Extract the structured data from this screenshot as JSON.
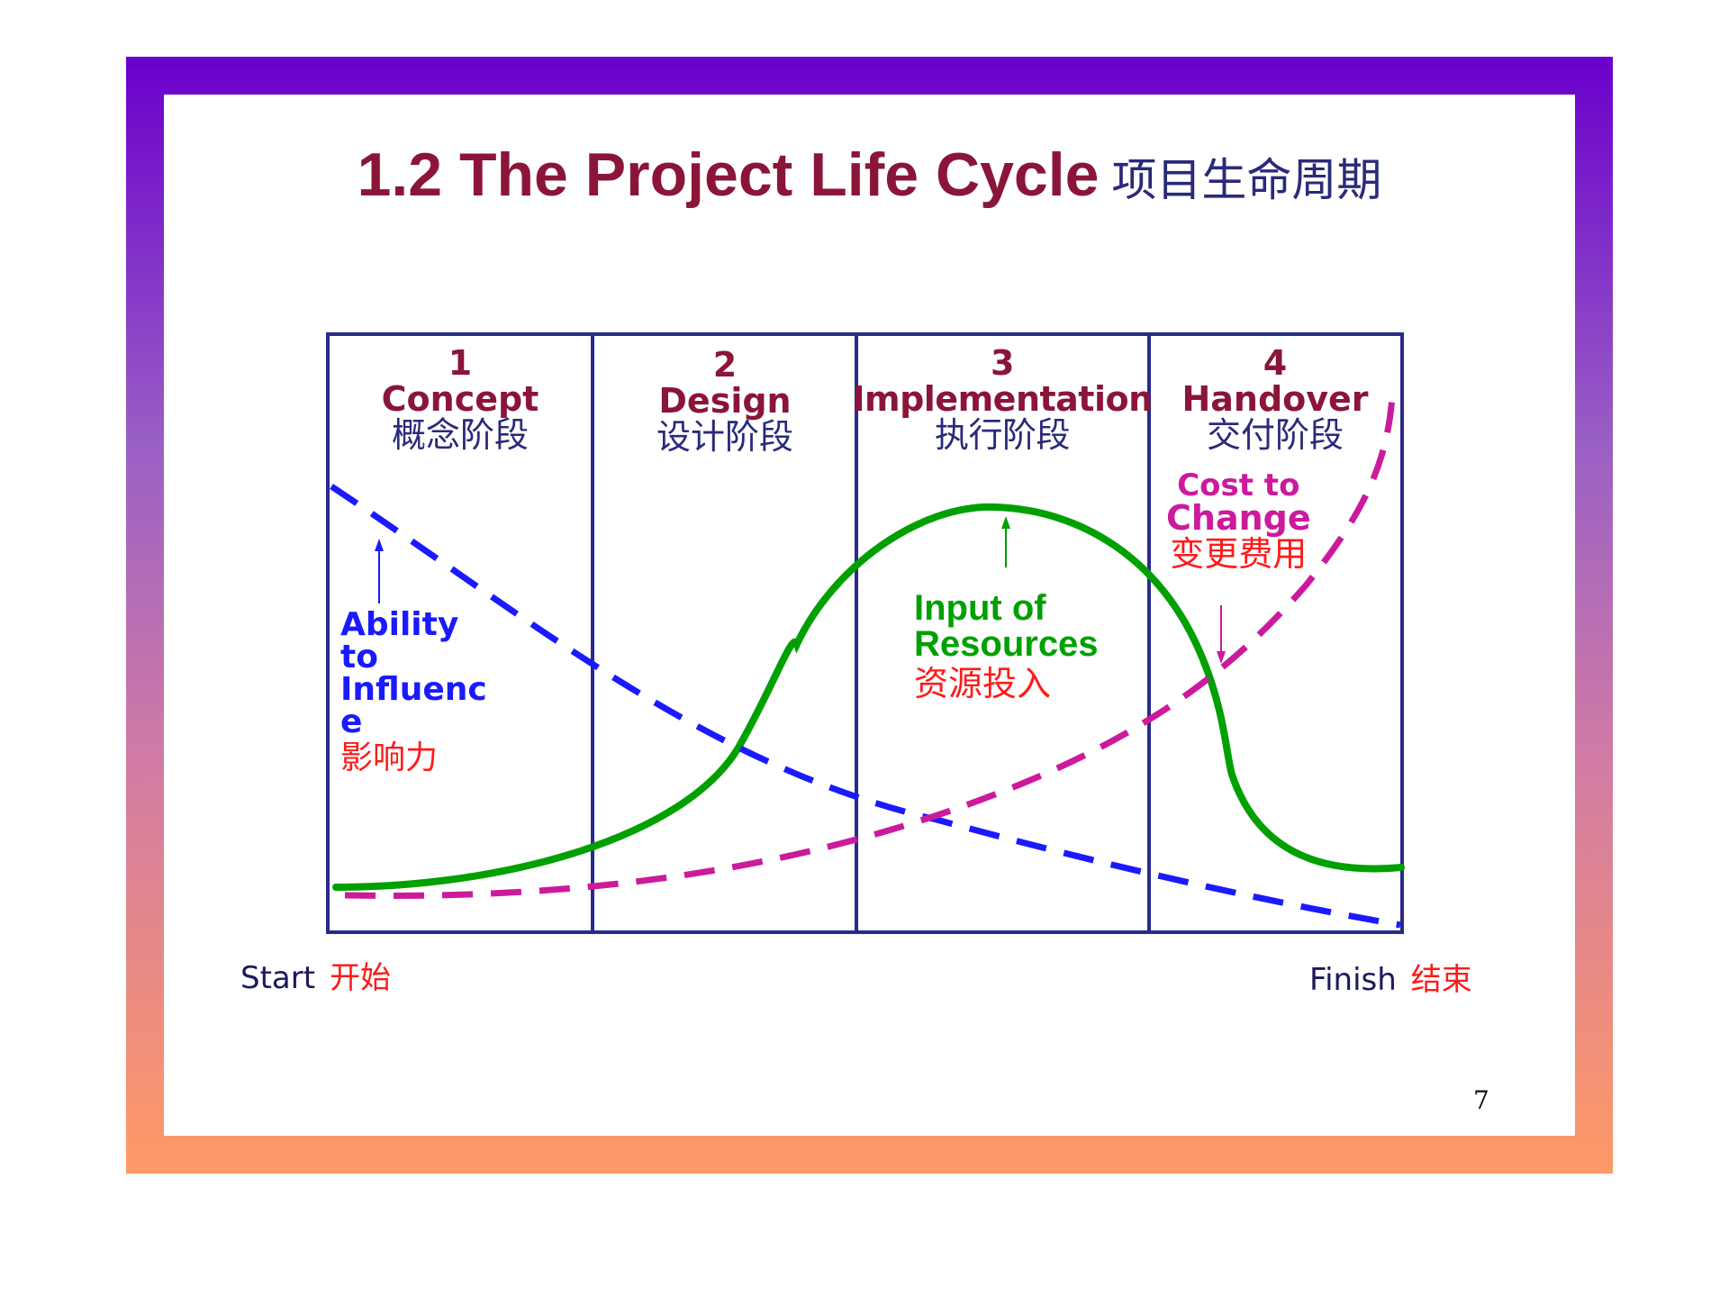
{
  "title": {
    "text": "1.2 The Project Life Cycle",
    "chinese": "项目生命周期"
  },
  "phases": [
    {
      "number": "1",
      "name": "Concept",
      "chinese": "概念阶段"
    },
    {
      "number": "2",
      "name": "Design",
      "chinese": "设计阶段"
    },
    {
      "number": "3",
      "name": "Implementation",
      "chinese": "执行阶段"
    },
    {
      "number": "4",
      "name": "Handover",
      "chinese": "交付阶段"
    }
  ],
  "curves": {
    "ability": {
      "lines": [
        "Ability",
        "to",
        "Influenc",
        "e"
      ],
      "chinese": "影响力",
      "color": "#1a1aff"
    },
    "resources": {
      "lines": [
        "Input of",
        "Resources"
      ],
      "chinese": "资源投入",
      "color": "#00a000"
    },
    "cost": {
      "lines": [
        "Cost to",
        "Change"
      ],
      "chinese": "变更费用",
      "color": "#cc1a9c"
    }
  },
  "axis": {
    "start": "Start",
    "start_chinese": "开始",
    "finish": "Finish",
    "finish_chinese": "结束"
  },
  "page_number": "7",
  "colors": {
    "frame_top": "#6a00cc",
    "frame_bottom": "#ff9966",
    "title": "#8b1538",
    "grid": "#2a2a8a"
  }
}
